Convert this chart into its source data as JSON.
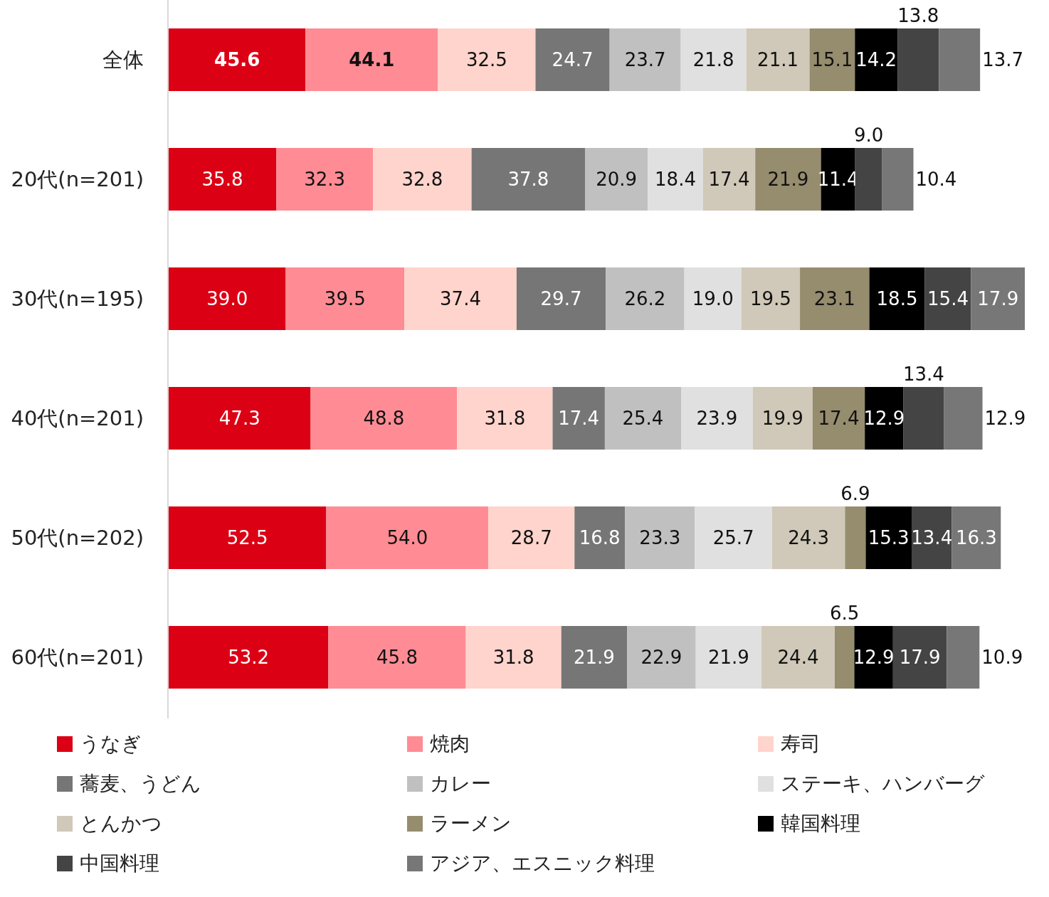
{
  "chart_data": {
    "type": "bar",
    "orientation": "horizontal",
    "stacked": true,
    "legend": "bottom",
    "categories": [
      "全体",
      "20代(n=201)",
      "30代(n=195)",
      "40代(n=201)",
      "50代(n=202)",
      "60代(n=201)"
    ],
    "series": [
      {
        "name": "うなぎ",
        "color": "#dc0014",
        "values": [
          45.6,
          35.8,
          39.0,
          47.3,
          52.5,
          53.2
        ],
        "value_labels": [
          "45.6",
          "35.8",
          "39.0",
          "47.3",
          "52.5",
          "53.2"
        ]
      },
      {
        "name": "焼肉",
        "color": "#ff8c94",
        "values": [
          44.1,
          32.3,
          39.5,
          48.8,
          54.0,
          45.8
        ],
        "value_labels": [
          "44.1",
          "32.3",
          "39.5",
          "48.8",
          "54.0",
          "45.8"
        ]
      },
      {
        "name": "寿司",
        "color": "#ffd4cc",
        "values": [
          32.5,
          32.8,
          37.4,
          31.8,
          28.7,
          31.8
        ],
        "value_labels": [
          "32.5",
          "32.8",
          "37.4",
          "31.8",
          "28.7",
          "31.8"
        ]
      },
      {
        "name": "蕎麦、うどん",
        "color": "#767676",
        "values": [
          24.7,
          37.8,
          29.7,
          17.4,
          16.8,
          21.9
        ],
        "value_labels": [
          "24.7",
          "37.8",
          "29.7",
          "17.4",
          "16.8",
          "21.9"
        ]
      },
      {
        "name": "カレー",
        "color": "#c0c0c0",
        "values": [
          23.7,
          20.9,
          26.2,
          25.4,
          23.3,
          22.9
        ],
        "value_labels": [
          "23.7",
          "20.9",
          "26.2",
          "25.4",
          "23.3",
          "22.9"
        ]
      },
      {
        "name": "ステーキ、ハンバーグ",
        "color": "#e0e0e0",
        "values": [
          21.8,
          18.4,
          19.0,
          23.9,
          25.7,
          21.9
        ],
        "value_labels": [
          "21.8",
          "18.4",
          "19.0",
          "23.9",
          "25.7",
          "21.9"
        ]
      },
      {
        "name": "とんかつ",
        "color": "#d0c8b8",
        "values": [
          21.1,
          17.4,
          19.5,
          19.9,
          24.3,
          24.4
        ],
        "value_labels": [
          "21.1",
          "17.4",
          "19.5",
          "19.9",
          "24.3",
          "24.4"
        ]
      },
      {
        "name": "ラーメン",
        "color": "#968c6e",
        "values": [
          15.1,
          21.9,
          23.1,
          17.4,
          6.9,
          6.5
        ],
        "value_labels": [
          "15.1",
          "21.9",
          "23.1",
          "17.4",
          "6.9",
          "6.5"
        ]
      },
      {
        "name": "韓国料理",
        "color": "#000000",
        "values": [
          14.2,
          11.4,
          18.5,
          12.9,
          15.3,
          12.9
        ],
        "value_labels": [
          "14.2",
          "11.4",
          "18.5",
          "12.9",
          "15.3",
          "12.9"
        ]
      },
      {
        "name": "中国料理",
        "color": "#444444",
        "values": [
          13.8,
          9.0,
          15.4,
          13.4,
          13.4,
          17.9
        ],
        "value_labels": [
          "13.8",
          "9.0",
          "15.4",
          "13.4",
          "13.4",
          "17.9"
        ]
      },
      {
        "name": "アジア、エスニック料理",
        "color": "#777777",
        "values": [
          13.7,
          10.4,
          17.9,
          12.9,
          16.3,
          10.9
        ],
        "value_labels": [
          "13.7",
          "10.4",
          "17.9",
          "12.9",
          "16.3",
          "10.9"
        ]
      }
    ]
  }
}
